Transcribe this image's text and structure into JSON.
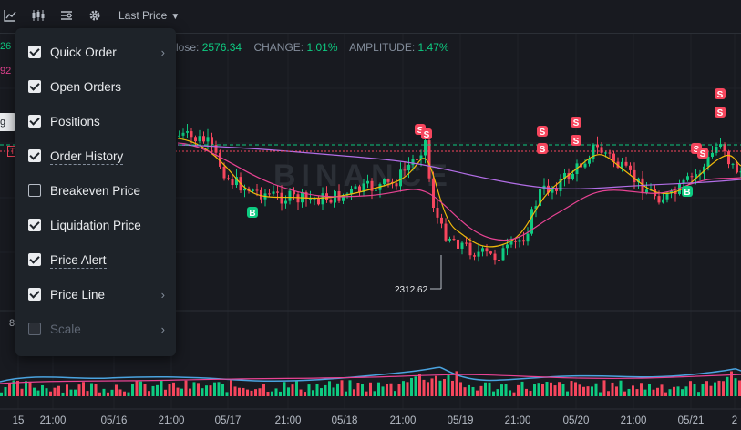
{
  "toolbar": {
    "icons": [
      "line-chart-icon",
      "candlestick-icon",
      "indicator-icon",
      "gear-icon"
    ],
    "price_source": "Last Price"
  },
  "info": {
    "close_label": "lose:",
    "close_value": "2576.34",
    "change_label": "CHANGE:",
    "change_value": "1.01%",
    "amplitude_label": "AMPLITUDE:",
    "amplitude_value": "1.47%"
  },
  "left_values": {
    "v1": "26",
    "v2": "92",
    "v3": "8",
    "tip": "g to",
    "tag": "T"
  },
  "watermark": "BINANCE",
  "low_label": "2312.62",
  "markers": {
    "sell": "S",
    "buy": "B"
  },
  "time_axis": [
    "15",
    "21:00",
    "05/16",
    "21:00",
    "05/17",
    "21:00",
    "05/18",
    "21:00",
    "05/19",
    "21:00",
    "05/20",
    "21:00",
    "05/21",
    "2"
  ],
  "menu": {
    "items": [
      {
        "label": "Quick Order",
        "checked": true,
        "arrow": "›"
      },
      {
        "label": "Open Orders",
        "checked": true
      },
      {
        "label": "Positions",
        "checked": true
      },
      {
        "label": "Order History",
        "checked": true
      },
      {
        "label": "Breakeven Price",
        "checked": false
      },
      {
        "label": "Liquidation Price",
        "checked": true
      },
      {
        "label": "Price Alert",
        "checked": true
      },
      {
        "label": "Price Line",
        "checked": true,
        "arrow": "›"
      },
      {
        "label": "Scale",
        "checked": false,
        "arrow": "›"
      }
    ]
  },
  "colors": {
    "up": "#0ecb81",
    "down": "#f6465d",
    "ma1": "#f0b90b",
    "ma2": "#e84393",
    "ma3": "#b26ee6"
  }
}
